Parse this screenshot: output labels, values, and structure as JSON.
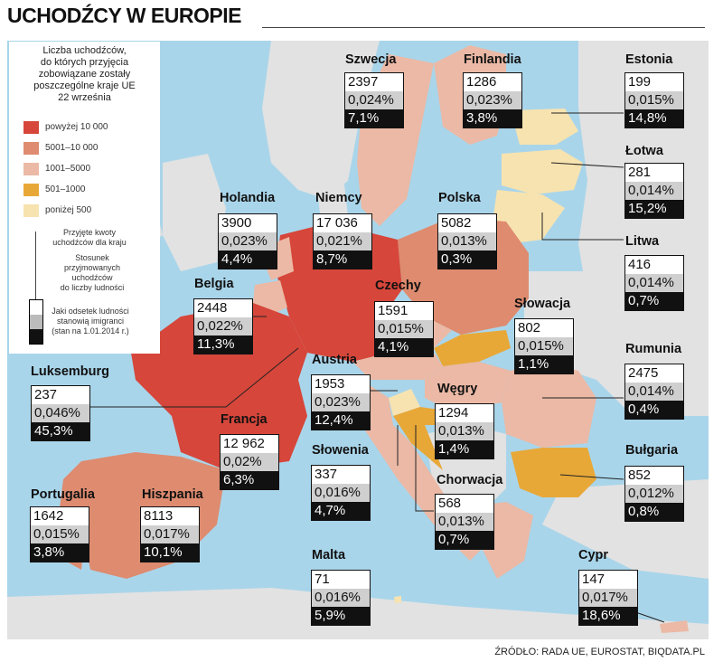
{
  "title": "UCHODŹCY W EUROPIE",
  "source": "ŹRÓDŁO: RADA UE, EUROSTAT, BIQDATA.PL",
  "colors": {
    "sea": "#a9d5ea",
    "land": "#e2e2e2",
    "above_10000": "#d6463a",
    "r5001_10000": "#de8b6f",
    "r1001_5000": "#ebb9a5",
    "r501_1000": "#e8a838",
    "below_500": "#f7e3b0"
  },
  "legend": {
    "title_lines": [
      "Liczba uchodźców,",
      "do których przyjęcia",
      "zobowiązane zostały",
      "poszczególne kraje UE",
      "22 września"
    ],
    "items": [
      {
        "label": "powyżej 10 000",
        "color": "#d6463a"
      },
      {
        "label": "5001–10 000",
        "color": "#de8b6f"
      },
      {
        "label": "1001–5000",
        "color": "#ebb9a5"
      },
      {
        "label": "501–1000",
        "color": "#e8a838"
      },
      {
        "label": "poniżej 500",
        "color": "#f7e3b0"
      }
    ],
    "explain_top": [
      "Przyjęte kwoty",
      "uchodźców dla kraju"
    ],
    "explain_mid": [
      "Stosunek",
      "przyjmowanych",
      "uchodźców",
      "do liczby ludności"
    ],
    "explain_bottom": [
      "Jaki odsetek ludności",
      "stanowią imigranci",
      "(stan na 1.01.2014 r.)"
    ]
  },
  "countries": [
    {
      "name": "Szwecja",
      "quota": "2397",
      "ratio": "0,024%",
      "immigrants": "7,1%"
    },
    {
      "name": "Finlandia",
      "quota": "1286",
      "ratio": "0,023%",
      "immigrants": "3,8%"
    },
    {
      "name": "Estonia",
      "quota": "199",
      "ratio": "0,015%",
      "immigrants": "14,8%"
    },
    {
      "name": "Łotwa",
      "quota": "281",
      "ratio": "0,014%",
      "immigrants": "15,2%"
    },
    {
      "name": "Litwa",
      "quota": "416",
      "ratio": "0,014%",
      "immigrants": "0,7%"
    },
    {
      "name": "Holandia",
      "quota": "3900",
      "ratio": "0,023%",
      "immigrants": "4,4%"
    },
    {
      "name": "Niemcy",
      "quota": "17 036",
      "ratio": "0,021%",
      "immigrants": "8,7%"
    },
    {
      "name": "Polska",
      "quota": "5082",
      "ratio": "0,013%",
      "immigrants": "0,3%"
    },
    {
      "name": "Belgia",
      "quota": "2448",
      "ratio": "0,022%",
      "immigrants": "11,3%"
    },
    {
      "name": "Czechy",
      "quota": "1591",
      "ratio": "0,015%",
      "immigrants": "4,1%"
    },
    {
      "name": "Słowacja",
      "quota": "802",
      "ratio": "0,015%",
      "immigrants": "1,1%"
    },
    {
      "name": "Rumunia",
      "quota": "2475",
      "ratio": "0,014%",
      "immigrants": "0,4%"
    },
    {
      "name": "Luksemburg",
      "quota": "237",
      "ratio": "0,046%",
      "immigrants": "45,3%"
    },
    {
      "name": "Austria",
      "quota": "1953",
      "ratio": "0,023%",
      "immigrants": "12,4%"
    },
    {
      "name": "Węgry",
      "quota": "1294",
      "ratio": "0,013%",
      "immigrants": "1,4%"
    },
    {
      "name": "Francja",
      "quota": "12 962",
      "ratio": "0,02%",
      "immigrants": "6,3%"
    },
    {
      "name": "Bułgaria",
      "quota": "852",
      "ratio": "0,012%",
      "immigrants": "0,8%"
    },
    {
      "name": "Słowenia",
      "quota": "337",
      "ratio": "0,016%",
      "immigrants": "4,7%"
    },
    {
      "name": "Chorwacja",
      "quota": "568",
      "ratio": "0,013%",
      "immigrants": "0,7%"
    },
    {
      "name": "Portugalia",
      "quota": "1642",
      "ratio": "0,015%",
      "immigrants": "3,8%"
    },
    {
      "name": "Hiszpania",
      "quota": "8113",
      "ratio": "0,017%",
      "immigrants": "10,1%"
    },
    {
      "name": "Malta",
      "quota": "71",
      "ratio": "0,016%",
      "immigrants": "5,9%"
    },
    {
      "name": "Cypr",
      "quota": "147",
      "ratio": "0,017%",
      "immigrants": "18,6%"
    }
  ]
}
